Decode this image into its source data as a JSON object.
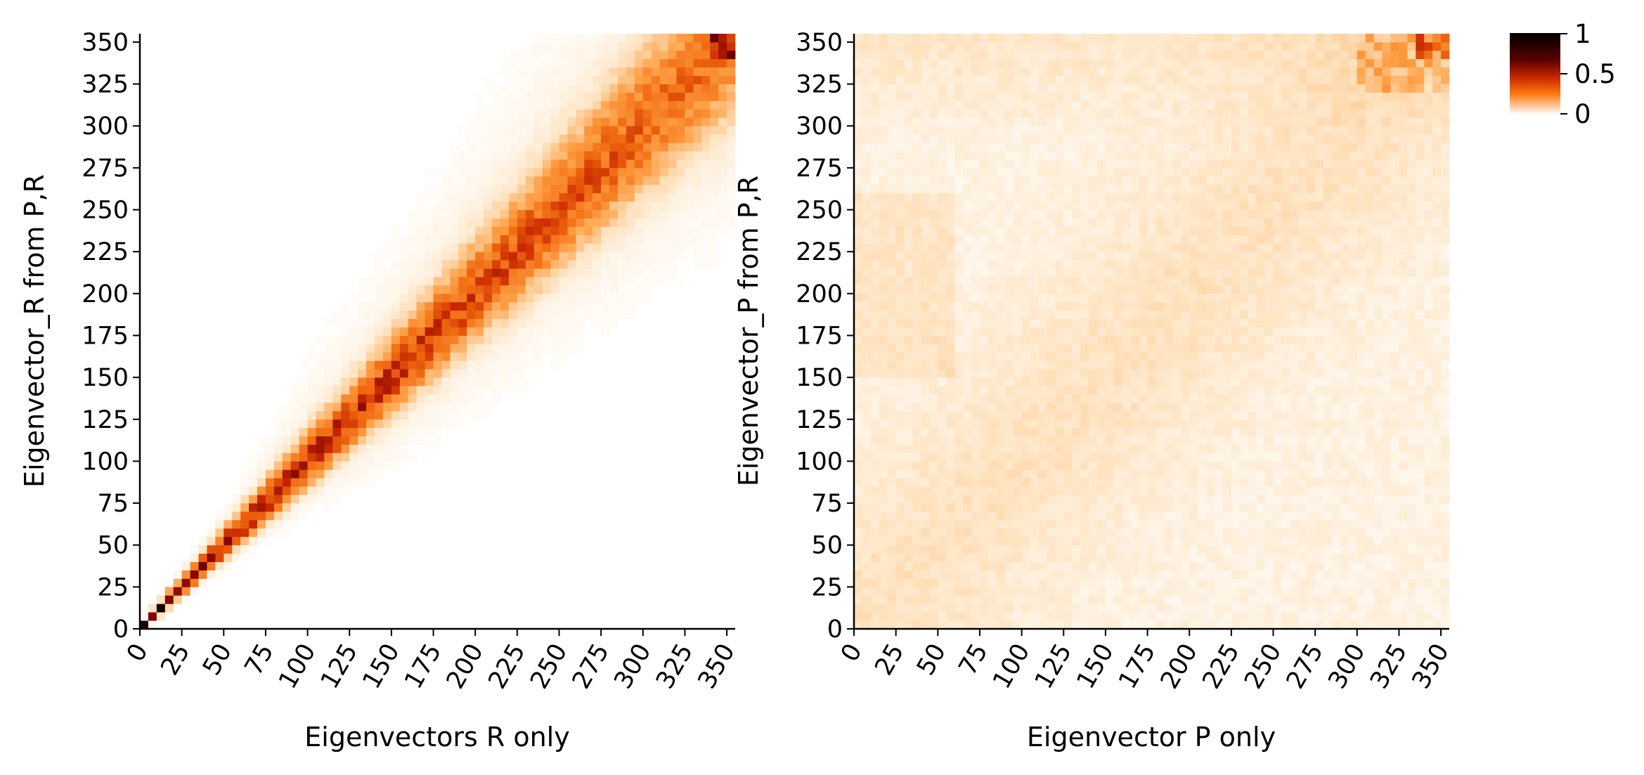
{
  "chart_data": [
    {
      "type": "heatmap",
      "title": "",
      "xlabel": "Eigenvectors R only",
      "ylabel": "Eigenvector_R from P,R",
      "xlim": [
        0,
        355
      ],
      "ylim": [
        0,
        355
      ],
      "xticks": [
        0,
        25,
        50,
        75,
        100,
        125,
        150,
        175,
        200,
        225,
        250,
        275,
        300,
        325,
        350
      ],
      "yticks": [
        0,
        25,
        50,
        75,
        100,
        125,
        150,
        175,
        200,
        225,
        250,
        275,
        300,
        325,
        350
      ],
      "xtick_rotation": 60,
      "grid": false,
      "pattern": "strong diagonal band from (0,0) to (355,355); band narrow and dark at low indices and broadening with index"
    },
    {
      "type": "heatmap",
      "title": "",
      "xlabel": "Eigenvector P only",
      "ylabel": "Eigenvector_P from P,R",
      "xlim": [
        0,
        355
      ],
      "ylim": [
        0,
        355
      ],
      "xticks": [
        0,
        25,
        50,
        75,
        100,
        125,
        150,
        175,
        200,
        225,
        250,
        275,
        300,
        325,
        350
      ],
      "yticks": [
        0,
        25,
        50,
        75,
        100,
        125,
        150,
        175,
        200,
        225,
        250,
        275,
        300,
        325,
        350
      ],
      "xtick_rotation": 60,
      "grid": false,
      "pattern": "diffuse, weak values; faint broad diagonal tendency; strongest values in upper-right corner (x 300-355, y 320-355)"
    }
  ],
  "colorbar": {
    "colormap": "gist_heat_r",
    "min": 0,
    "max": 1,
    "tick_labels": [
      "1",
      "0.5",
      "0"
    ],
    "tick_values": [
      1,
      0.5,
      0
    ],
    "colors": [
      "#000000",
      "#7a0000",
      "#ff6a00",
      "#ffffff"
    ]
  }
}
